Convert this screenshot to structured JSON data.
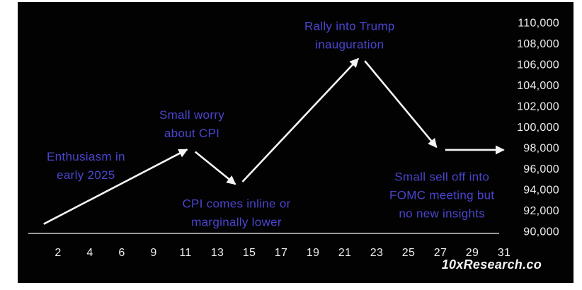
{
  "page": {
    "background": "#ffffff"
  },
  "panel": {
    "background": "#020202"
  },
  "colors": {
    "annotation": "#4b45cf",
    "line": "#f4f4f4",
    "axis": "#cdcdcd",
    "tick_label": "#efefef",
    "watermark": "#f2f2f2"
  },
  "watermark": {
    "text": "10xResearch.co"
  },
  "chart_data": {
    "type": "line",
    "title": "",
    "xlabel": "",
    "ylabel": "",
    "grid": false,
    "legend": "none",
    "x_ticks": [
      "2",
      "4",
      "6",
      "9",
      "11",
      "13",
      "15",
      "17",
      "19",
      "21",
      "23",
      "25",
      "27",
      "29",
      "31"
    ],
    "y_tick_labels": [
      "110,000",
      "108,000",
      "106,000",
      "104,000",
      "102,000",
      "100,000",
      "98,000",
      "96,000",
      "94,000",
      "92,000",
      "90,000"
    ],
    "ylim": [
      90000,
      110000
    ],
    "points": [
      {
        "day": 1.1,
        "price": 90700
      },
      {
        "day": 11.3,
        "price": 98000
      },
      {
        "day": 14.3,
        "price": 94300
      },
      {
        "day": 22.0,
        "price": 106800
      },
      {
        "day": 26.9,
        "price": 97800
      },
      {
        "day": 31.2,
        "price": 97800
      }
    ],
    "annotations": [
      {
        "lines": [
          "Enthusiasm in",
          "early 2025"
        ],
        "day": 3.75,
        "price": 96300
      },
      {
        "lines": [
          "Small worry",
          "about CPI"
        ],
        "day": 11.4,
        "price": 100300
      },
      {
        "lines": [
          "CPI comes inline or",
          "marginally lower"
        ],
        "day": 14.2,
        "price": 91800
      },
      {
        "lines": [
          "Rally into Trump",
          "inauguration"
        ],
        "day": 21.3,
        "price": 108800
      },
      {
        "lines": [
          "Small sell off into",
          "FOMC meeting but",
          "no new insights"
        ],
        "day": 27.1,
        "price": 93500
      }
    ]
  }
}
